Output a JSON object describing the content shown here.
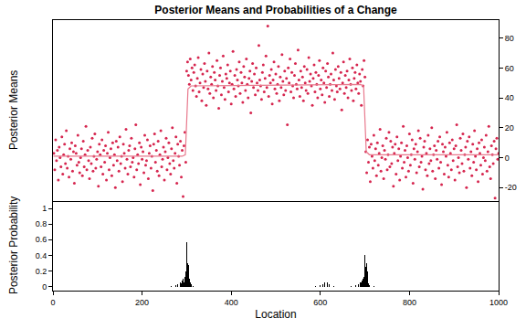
{
  "chart_data": [
    {
      "type": "scatter",
      "title": "Posterior Means and Probabilities of a Change",
      "y_label": "Posterior Means",
      "xlim": [
        0,
        1000
      ],
      "ylim": [
        -29,
        92
      ],
      "yticks": [
        -20,
        0,
        20,
        40,
        60,
        80
      ],
      "tick_labels": "y",
      "series": [
        {
          "type": "scatter",
          "color": "#d6264f",
          "marker": "circle",
          "x": [
            2,
            4,
            6,
            8,
            10,
            12,
            14,
            16,
            18,
            20,
            22,
            24,
            26,
            28,
            30,
            32,
            34,
            36,
            38,
            40,
            42,
            44,
            46,
            48,
            50,
            52,
            54,
            56,
            58,
            60,
            62,
            64,
            66,
            68,
            70,
            72,
            74,
            76,
            78,
            80,
            82,
            84,
            86,
            88,
            90,
            92,
            94,
            96,
            98,
            100,
            102,
            104,
            106,
            108,
            110,
            112,
            114,
            116,
            118,
            120,
            122,
            124,
            126,
            128,
            130,
            132,
            134,
            136,
            138,
            140,
            142,
            144,
            146,
            148,
            150,
            152,
            154,
            156,
            158,
            160,
            162,
            164,
            166,
            168,
            170,
            172,
            174,
            176,
            178,
            180,
            182,
            184,
            186,
            188,
            190,
            192,
            194,
            196,
            198,
            200,
            202,
            204,
            206,
            208,
            210,
            212,
            214,
            216,
            218,
            220,
            222,
            224,
            226,
            228,
            230,
            232,
            234,
            236,
            238,
            240,
            242,
            244,
            246,
            248,
            250,
            252,
            254,
            256,
            258,
            260,
            262,
            264,
            266,
            268,
            270,
            272,
            274,
            276,
            278,
            280,
            282,
            284,
            286,
            288,
            290,
            292,
            294,
            296,
            298,
            300,
            302,
            304,
            306,
            308,
            310,
            312,
            314,
            316,
            318,
            320,
            322,
            324,
            326,
            328,
            330,
            332,
            334,
            336,
            338,
            340,
            342,
            344,
            346,
            348,
            350,
            352,
            354,
            356,
            358,
            360,
            362,
            364,
            366,
            368,
            370,
            372,
            374,
            376,
            378,
            380,
            382,
            384,
            386,
            388,
            390,
            392,
            394,
            396,
            398,
            400,
            402,
            404,
            406,
            408,
            410,
            412,
            414,
            416,
            418,
            420,
            422,
            424,
            426,
            428,
            430,
            432,
            434,
            436,
            438,
            440,
            442,
            444,
            446,
            448,
            450,
            452,
            454,
            456,
            458,
            460,
            462,
            464,
            466,
            468,
            470,
            472,
            474,
            476,
            478,
            480,
            482,
            484,
            486,
            488,
            490,
            492,
            494,
            496,
            498,
            500,
            502,
            504,
            506,
            508,
            510,
            512,
            514,
            516,
            518,
            520,
            522,
            524,
            526,
            528,
            530,
            532,
            534,
            536,
            538,
            540,
            542,
            544,
            546,
            548,
            550,
            552,
            554,
            556,
            558,
            560,
            562,
            564,
            566,
            568,
            570,
            572,
            574,
            576,
            578,
            580,
            582,
            584,
            586,
            588,
            590,
            592,
            594,
            596,
            598,
            600,
            602,
            604,
            606,
            608,
            610,
            612,
            614,
            616,
            618,
            620,
            622,
            624,
            626,
            628,
            630,
            632,
            634,
            636,
            638,
            640,
            642,
            644,
            646,
            648,
            650,
            652,
            654,
            656,
            658,
            660,
            662,
            664,
            666,
            668,
            670,
            672,
            674,
            676,
            678,
            680,
            682,
            684,
            686,
            688,
            690,
            692,
            694,
            696,
            698,
            700,
            702,
            704,
            706,
            708,
            710,
            712,
            714,
            716,
            718,
            720,
            722,
            724,
            726,
            728,
            730,
            732,
            734,
            736,
            738,
            740,
            742,
            744,
            746,
            748,
            750,
            752,
            754,
            756,
            758,
            760,
            762,
            764,
            766,
            768,
            770,
            772,
            774,
            776,
            778,
            780,
            782,
            784,
            786,
            788,
            790,
            792,
            794,
            796,
            798,
            800,
            802,
            804,
            806,
            808,
            810,
            812,
            814,
            816,
            818,
            820,
            822,
            824,
            826,
            828,
            830,
            832,
            834,
            836,
            838,
            840,
            842,
            844,
            846,
            848,
            850,
            852,
            854,
            856,
            858,
            860,
            862,
            864,
            866,
            868,
            870,
            872,
            874,
            876,
            878,
            880,
            882,
            884,
            886,
            888,
            890,
            892,
            894,
            896,
            898,
            900,
            902,
            904,
            906,
            908,
            910,
            912,
            914,
            916,
            918,
            920,
            922,
            924,
            926,
            928,
            930,
            932,
            934,
            936,
            938,
            940,
            942,
            944,
            946,
            948,
            950,
            952,
            954,
            956,
            958,
            960,
            962,
            964,
            966,
            968,
            970,
            972,
            974,
            976,
            978,
            980,
            982,
            984,
            986,
            988,
            990,
            992,
            994,
            996,
            998,
            1000
          ],
          "values": [
            3,
            -8,
            12,
            -2,
            5,
            -15,
            7,
            0,
            -6,
            14,
            -11,
            2,
            9,
            -4,
            18,
            -7,
            1,
            -13,
            6,
            -1,
            10,
            -9,
            4,
            -17,
            8,
            3,
            -5,
            15,
            -3,
            -10,
            0,
            6,
            -12,
            11,
            -6,
            2,
            21,
            -8,
            5,
            -2,
            -14,
            7,
            -4,
            13,
            -9,
            1,
            16,
            -7,
            -1,
            4,
            -19,
            9,
            2,
            -6,
            12,
            -11,
            5,
            -3,
            8,
            -15,
            3,
            17,
            -8,
            0,
            6,
            -12,
            10,
            -5,
            2,
            -20,
            11,
            -2,
            7,
            -9,
            14,
            -4,
            1,
            -16,
            9,
            3,
            -7,
            19,
            -1,
            -11,
            5,
            8,
            -6,
            13,
            -3,
            0,
            -13,
            6,
            22,
            -8,
            2,
            -4,
            10,
            -18,
            7,
            -1,
            4,
            -10,
            15,
            -5,
            -2,
            12,
            -14,
            3,
            8,
            -7,
            1,
            -22,
            9,
            16,
            -3,
            5,
            -9,
            11,
            -12,
            2,
            18,
            -6,
            -1,
            7,
            -15,
            4,
            13,
            -8,
            0,
            10,
            -4,
            -11,
            6,
            20,
            -2,
            -7,
            3,
            14,
            -17,
            9,
            1,
            -5,
            11,
            -13,
            5,
            -26,
            8,
            17,
            -3,
            58,
            64,
            55,
            49,
            66,
            52,
            60,
            45,
            57,
            62,
            48,
            41,
            53,
            67,
            44,
            50,
            59,
            38,
            56,
            47,
            63,
            51,
            35,
            58,
            46,
            70,
            43,
            54,
            49,
            61,
            40,
            57,
            52,
            45,
            65,
            48,
            33,
            55,
            60,
            42,
            51,
            68,
            47,
            39,
            56,
            53,
            62,
            44,
            50,
            58,
            36,
            49,
            71,
            46,
            55,
            41,
            59,
            52,
            48,
            64,
            43,
            57,
            50,
            37,
            61,
            54,
            45,
            66,
            49,
            40,
            53,
            58,
            30,
            51,
            63,
            47,
            56,
            42,
            60,
            50,
            45,
            75,
            52,
            48,
            39,
            57,
            62,
            44,
            53,
            68,
            47,
            88,
            41,
            55,
            50,
            59,
            36,
            52,
            64,
            46,
            56,
            43,
            49,
            61,
            38,
            54,
            47,
            69,
            51,
            42,
            58,
            45,
            53,
            22,
            60,
            50,
            66,
            44,
            57,
            48,
            40,
            55,
            63,
            49,
            46,
            72,
            52,
            41,
            58,
            47,
            54,
            38,
            61,
            50,
            45,
            59,
            43,
            67,
            51,
            56,
            48,
            35,
            53,
            62,
            44,
            57,
            49,
            40,
            55,
            65,
            46,
            52,
            42,
            60,
            50,
            37,
            58,
            47,
            63,
            54,
            41,
            49,
            56,
            45,
            70,
            52,
            39,
            59,
            48,
            44,
            61,
            53,
            46,
            57,
            32,
            50,
            64,
            43,
            55,
            47,
            58,
            40,
            52,
            66,
            49,
            45,
            60,
            38,
            53,
            57,
            46,
            62,
            50,
            43,
            56,
            51,
            35,
            59,
            48,
            65,
            54,
            4,
            -10,
            12,
            -3,
            7,
            -16,
            9,
            1,
            -7,
            15,
            -2,
            6,
            -12,
            10,
            -5,
            3,
            19,
            -9,
            0,
            8,
            -14,
            5,
            -1,
            13,
            -8,
            2,
            17,
            -6,
            11,
            -4,
            7,
            -19,
            3,
            9,
            -11,
            14,
            -2,
            6,
            -15,
            1,
            10,
            -7,
            21,
            -3,
            5,
            -13,
            8,
            0,
            -9,
            16,
            -5,
            2,
            12,
            -17,
            6,
            -1,
            9,
            -10,
            4,
            18,
            -6,
            13,
            -3,
            1,
            -21,
            7,
            11,
            -8,
            3,
            -12,
            15,
            -4,
            6,
            -2,
            20,
            -9,
            2,
            8,
            -14,
            5,
            -1,
            11,
            -7,
            14,
            -3,
            -18,
            9,
            4,
            -11,
            7,
            1,
            17,
            -5,
            -13,
            10,
            3,
            -8,
            12,
            -2,
            6,
            -15,
            8,
            22,
            -6,
            0,
            -10,
            13,
            5,
            -4,
            16,
            -9,
            2,
            7,
            -20,
            11,
            -1,
            14,
            -7,
            4,
            -12,
            9,
            -3,
            18,
            1,
            -8,
            6,
            -16,
            10,
            3,
            -5,
            12,
            -11,
            0,
            7,
            -2,
            15,
            -9,
            4,
            21,
            -6,
            -14,
            8,
            2,
            -4,
            11,
            -27,
            6,
            13,
            -1,
            3
          ]
        },
        {
          "type": "line",
          "color": "#e8798d",
          "x": [
            1,
            290,
            297,
            300,
            303,
            310,
            690,
            697,
            700,
            703,
            710,
            1000
          ],
          "values": [
            1,
            1,
            2,
            20,
            46,
            48,
            49,
            48,
            30,
            4,
            2,
            2
          ]
        }
      ]
    },
    {
      "type": "bar",
      "x_label": "Location",
      "y_label": "Posterior Probability",
      "xlim": [
        0,
        1000
      ],
      "xticks": [
        0,
        200,
        400,
        600,
        800,
        1000
      ],
      "ylim": [
        -0.05,
        1.08
      ],
      "yticks": [
        0,
        0.2,
        0.4,
        0.6,
        0.8,
        1
      ],
      "color": "#000000",
      "x": [
        250,
        265,
        275,
        280,
        285,
        288,
        290,
        292,
        294,
        296,
        298,
        300,
        301,
        302,
        303,
        304,
        305,
        306,
        308,
        310,
        315,
        590,
        600,
        605,
        610,
        615,
        620,
        625,
        630,
        670,
        680,
        685,
        690,
        692,
        694,
        696,
        698,
        700,
        701,
        702,
        703,
        704,
        705,
        706,
        708,
        710,
        720
      ],
      "values": [
        0.01,
        0.01,
        0.02,
        0.03,
        0.05,
        0.04,
        0.08,
        0.1,
        0.06,
        0.12,
        0.2,
        0.57,
        0.45,
        0.2,
        0.3,
        0.15,
        0.28,
        0.1,
        0.05,
        0.03,
        0.01,
        0.01,
        0.02,
        0.03,
        0.05,
        0.06,
        0.03,
        0.02,
        0.01,
        0.01,
        0.02,
        0.03,
        0.05,
        0.06,
        0.08,
        0.1,
        0.12,
        0.4,
        0.25,
        0.15,
        0.3,
        0.1,
        0.2,
        0.08,
        0.04,
        0.02,
        0.01
      ]
    }
  ]
}
